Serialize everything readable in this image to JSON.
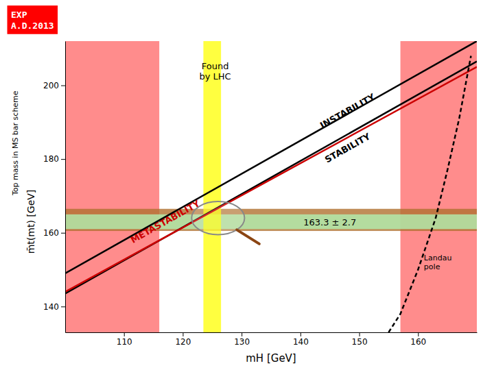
{
  "chart_data": {
    "type": "line",
    "xlabel": "mH [GeV]",
    "ylabel": [
      "Top mass in MS bar scheme",
      "m̄t(mt) [GeV]"
    ],
    "xlim": [
      100,
      170
    ],
    "ylim": [
      133,
      212
    ],
    "xticks": [
      110,
      120,
      130,
      140,
      150,
      160
    ],
    "yticks": [
      140,
      160,
      180,
      200
    ],
    "grid": false,
    "bands": [
      {
        "axis": "x",
        "range": [
          100,
          116
        ],
        "color": "#ff6666"
      },
      {
        "axis": "x",
        "range": [
          157,
          170
        ],
        "color": "#ff6666"
      },
      {
        "axis": "y",
        "range": [
          160.5,
          166.5
        ],
        "color": "#b07030"
      },
      {
        "axis": "y",
        "range": [
          161.0,
          165.0
        ],
        "color": "#b0f0b0"
      },
      {
        "axis": "x",
        "range": [
          123.5,
          126.5
        ],
        "color": "#ffff00"
      }
    ],
    "series": [
      {
        "x": [
          100,
          170
        ],
        "values": [
          149.0,
          212.0
        ],
        "color": "#000000",
        "line_style": "solid"
      },
      {
        "x": [
          100,
          170
        ],
        "values": [
          143.5,
          206.5
        ],
        "color": "#000000",
        "line_style": "solid"
      },
      {
        "x": [
          100,
          170
        ],
        "values": [
          144.0,
          205.0
        ],
        "color": "#cc0000",
        "line_style": "solid"
      },
      {
        "x": [
          155,
          157,
          160,
          163,
          165,
          167,
          169
        ],
        "values": [
          133,
          138,
          150,
          164,
          177,
          191,
          208
        ],
        "color": "#000000",
        "line_style": "dashed"
      }
    ],
    "magnifier": {
      "cx": 126,
      "cy": 164,
      "r": 4.5
    },
    "region_labels": [
      {
        "text": "INSTABILITY",
        "x": 148,
        "y": 193,
        "color": "#000000"
      },
      {
        "text": "STABILITY",
        "x": 148,
        "y": 183,
        "color": "#000000"
      },
      {
        "text": "METASTABILITY",
        "x": 117,
        "y": 163,
        "color": "#cc0000"
      }
    ],
    "annotations": [
      {
        "text": "163.3 ± 2.7",
        "x": 145,
        "y": 163.0,
        "color": "#000000"
      },
      {
        "text": "Landau\npole",
        "x": 161,
        "y": 152,
        "color": "#000000",
        "align": "left"
      },
      {
        "text": "Found\nby LHC",
        "x": 125.5,
        "y": 204,
        "color": "#000000"
      }
    ],
    "badge": {
      "text": "EXP\nA.D.2013",
      "color": "#ff0000"
    }
  }
}
